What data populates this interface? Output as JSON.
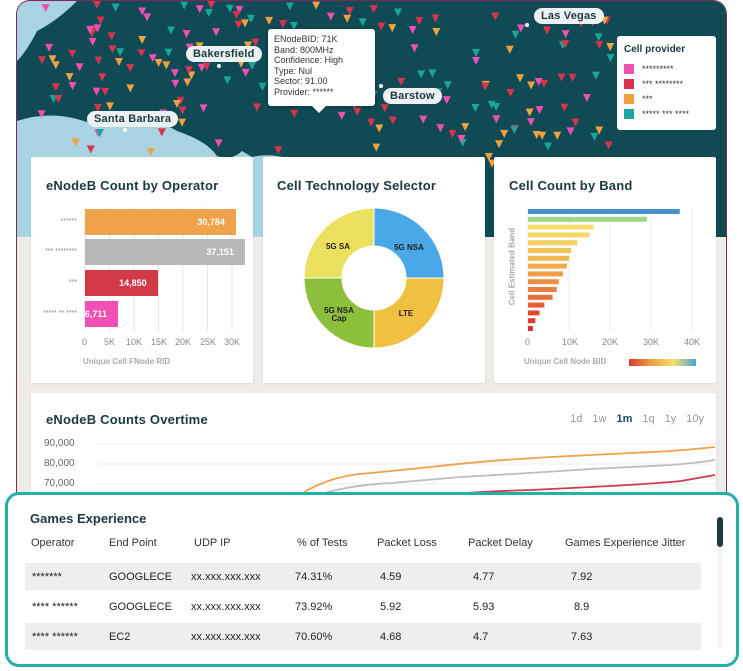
{
  "map": {
    "cities": [
      "Las Vegas",
      "Bakersfield",
      "Barstow",
      "Santa Barbara"
    ],
    "tooltip": {
      "lines": [
        "ENodeBID: 71K",
        "Band: 800MHz",
        "Confidence: High",
        "Type: Nul",
        "Sector: 91.00",
        "Provider: ******"
      ]
    },
    "legend": {
      "title": "Cell provider",
      "items": [
        {
          "label": "*********",
          "color": "#f04fb4"
        },
        {
          "label": "*** ********",
          "color": "#d8344f"
        },
        {
          "label": "***",
          "color": "#f0a240"
        },
        {
          "label": "***** *** ****",
          "color": "#1aa69a"
        }
      ]
    }
  },
  "operator_card": {
    "title": "eNodeB Count by Operator",
    "xlabel": "Unique Cell FNode RID",
    "ticks": [
      "0",
      "5K",
      "10K",
      "15K",
      "20K",
      "25K",
      "30K"
    ],
    "bars": [
      {
        "label": "******",
        "value": 30784,
        "display": "30,784",
        "color": "#f0a24a"
      },
      {
        "label": "*** ********",
        "value": 37151,
        "display": "37,151",
        "color": "#b8b8b8"
      },
      {
        "label": "***",
        "value": 14850,
        "display": "14,850",
        "color": "#d23a4a"
      },
      {
        "label": "***** ** ****",
        "value": 6711,
        "display": "6,711",
        "color": "#f04fb4"
      }
    ]
  },
  "tech_card": {
    "title": "Cell Technology Selector",
    "segments": [
      {
        "label": "5G NSA",
        "value": 25,
        "color": "#4aa8e8"
      },
      {
        "label": "LTE",
        "value": 25,
        "color": "#f2c040"
      },
      {
        "label": "5G NSA Cap",
        "value": 25,
        "color": "#8cbf3c"
      },
      {
        "label": "5G SA",
        "value": 25,
        "color": "#ece060"
      }
    ]
  },
  "band_card": {
    "title": "Cell Count by Band",
    "ylabel": "Cell Estimated Band",
    "xlabel": "Unique Cell Node BID",
    "ticks": [
      "0",
      "10K",
      "20K",
      "30K",
      "40K"
    ],
    "values": [
      37000,
      29000,
      16000,
      15000,
      12000,
      10500,
      10000,
      9500,
      8500,
      7500,
      7000,
      6000,
      4000,
      2800,
      1800,
      1200
    ]
  },
  "overtime_card": {
    "title": "eNodeB Counts Overtime",
    "ranges": [
      "1d",
      "1w",
      "1m",
      "1q",
      "1y",
      "10y"
    ],
    "active_range": "1m",
    "yticks": [
      "90,000",
      "80,000",
      "70,000"
    ]
  },
  "games": {
    "title": "Games Experience",
    "headers": [
      "Operator",
      "End Point",
      "UDP IP",
      "% of Tests",
      "Packet Loss",
      "Packet Delay",
      "Games Experience Jitter"
    ],
    "rows": [
      [
        "*******",
        "GOOGLECE",
        "xx.xxx.xxx.xxx",
        "74.31%",
        "4.59",
        "4.77",
        "7.92"
      ],
      [
        "**** ******",
        "GOOGLECE",
        "xx.xxx.xxx.xxx",
        "73.92%",
        "5.92",
        "5.93",
        "8.9"
      ],
      [
        "**** ******",
        "EC2",
        "xx.xxx.xxx.xxx",
        "70.60%",
        "4.68",
        "4.7",
        "7.63"
      ]
    ]
  }
}
